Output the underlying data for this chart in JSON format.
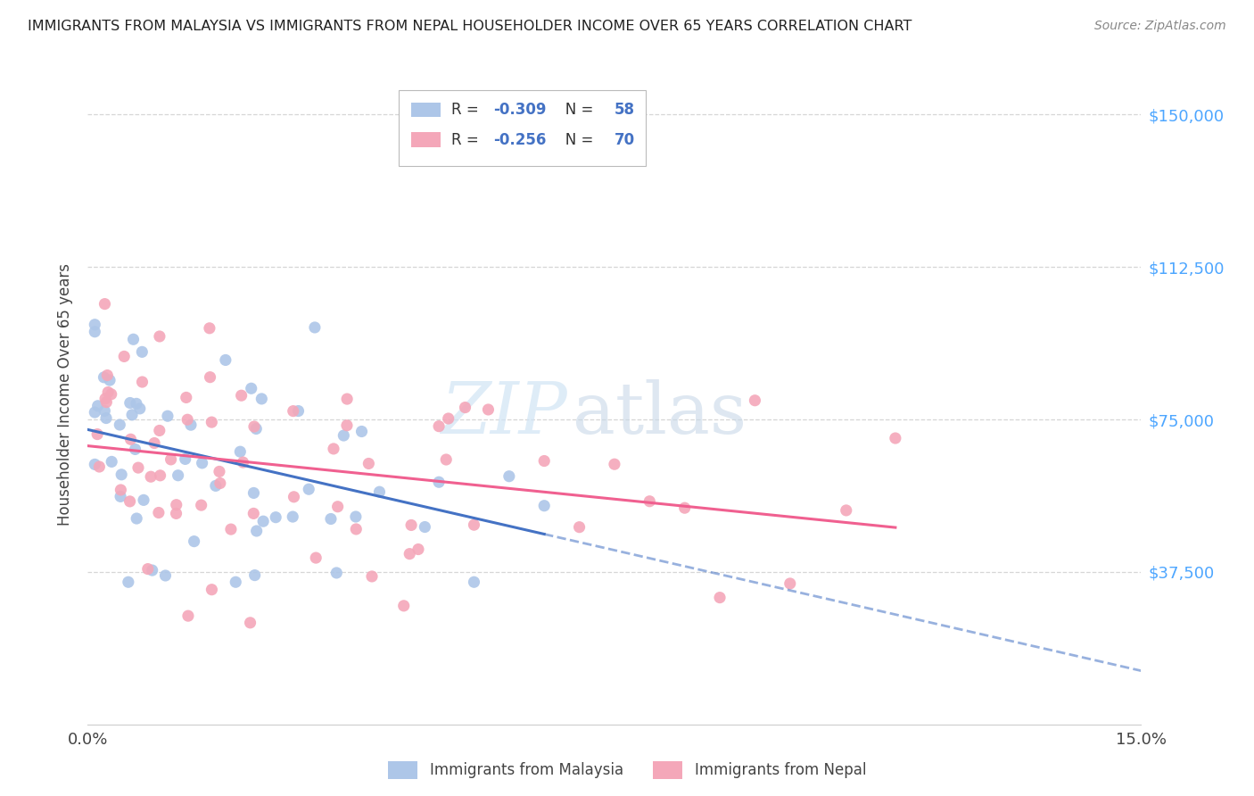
{
  "title": "IMMIGRANTS FROM MALAYSIA VS IMMIGRANTS FROM NEPAL HOUSEHOLDER INCOME OVER 65 YEARS CORRELATION CHART",
  "source": "Source: ZipAtlas.com",
  "ylabel": "Householder Income Over 65 years",
  "ytick_values": [
    37500,
    75000,
    112500,
    150000
  ],
  "ymin": 0,
  "ymax": 162500,
  "xmin": 0.0,
  "xmax": 0.15,
  "malaysia_R": -0.309,
  "malaysia_N": 58,
  "nepal_R": -0.256,
  "nepal_N": 70,
  "malaysia_color": "#adc6e8",
  "nepal_color": "#f4a7b9",
  "malaysia_line_color": "#4472c4",
  "nepal_line_color": "#f06090",
  "watermark_zip": "ZIP",
  "watermark_atlas": "atlas",
  "background_color": "#ffffff",
  "grid_color": "#cccccc",
  "title_color": "#222222",
  "source_color": "#888888",
  "axis_label_color": "#444444",
  "right_tick_color": "#4da6ff"
}
